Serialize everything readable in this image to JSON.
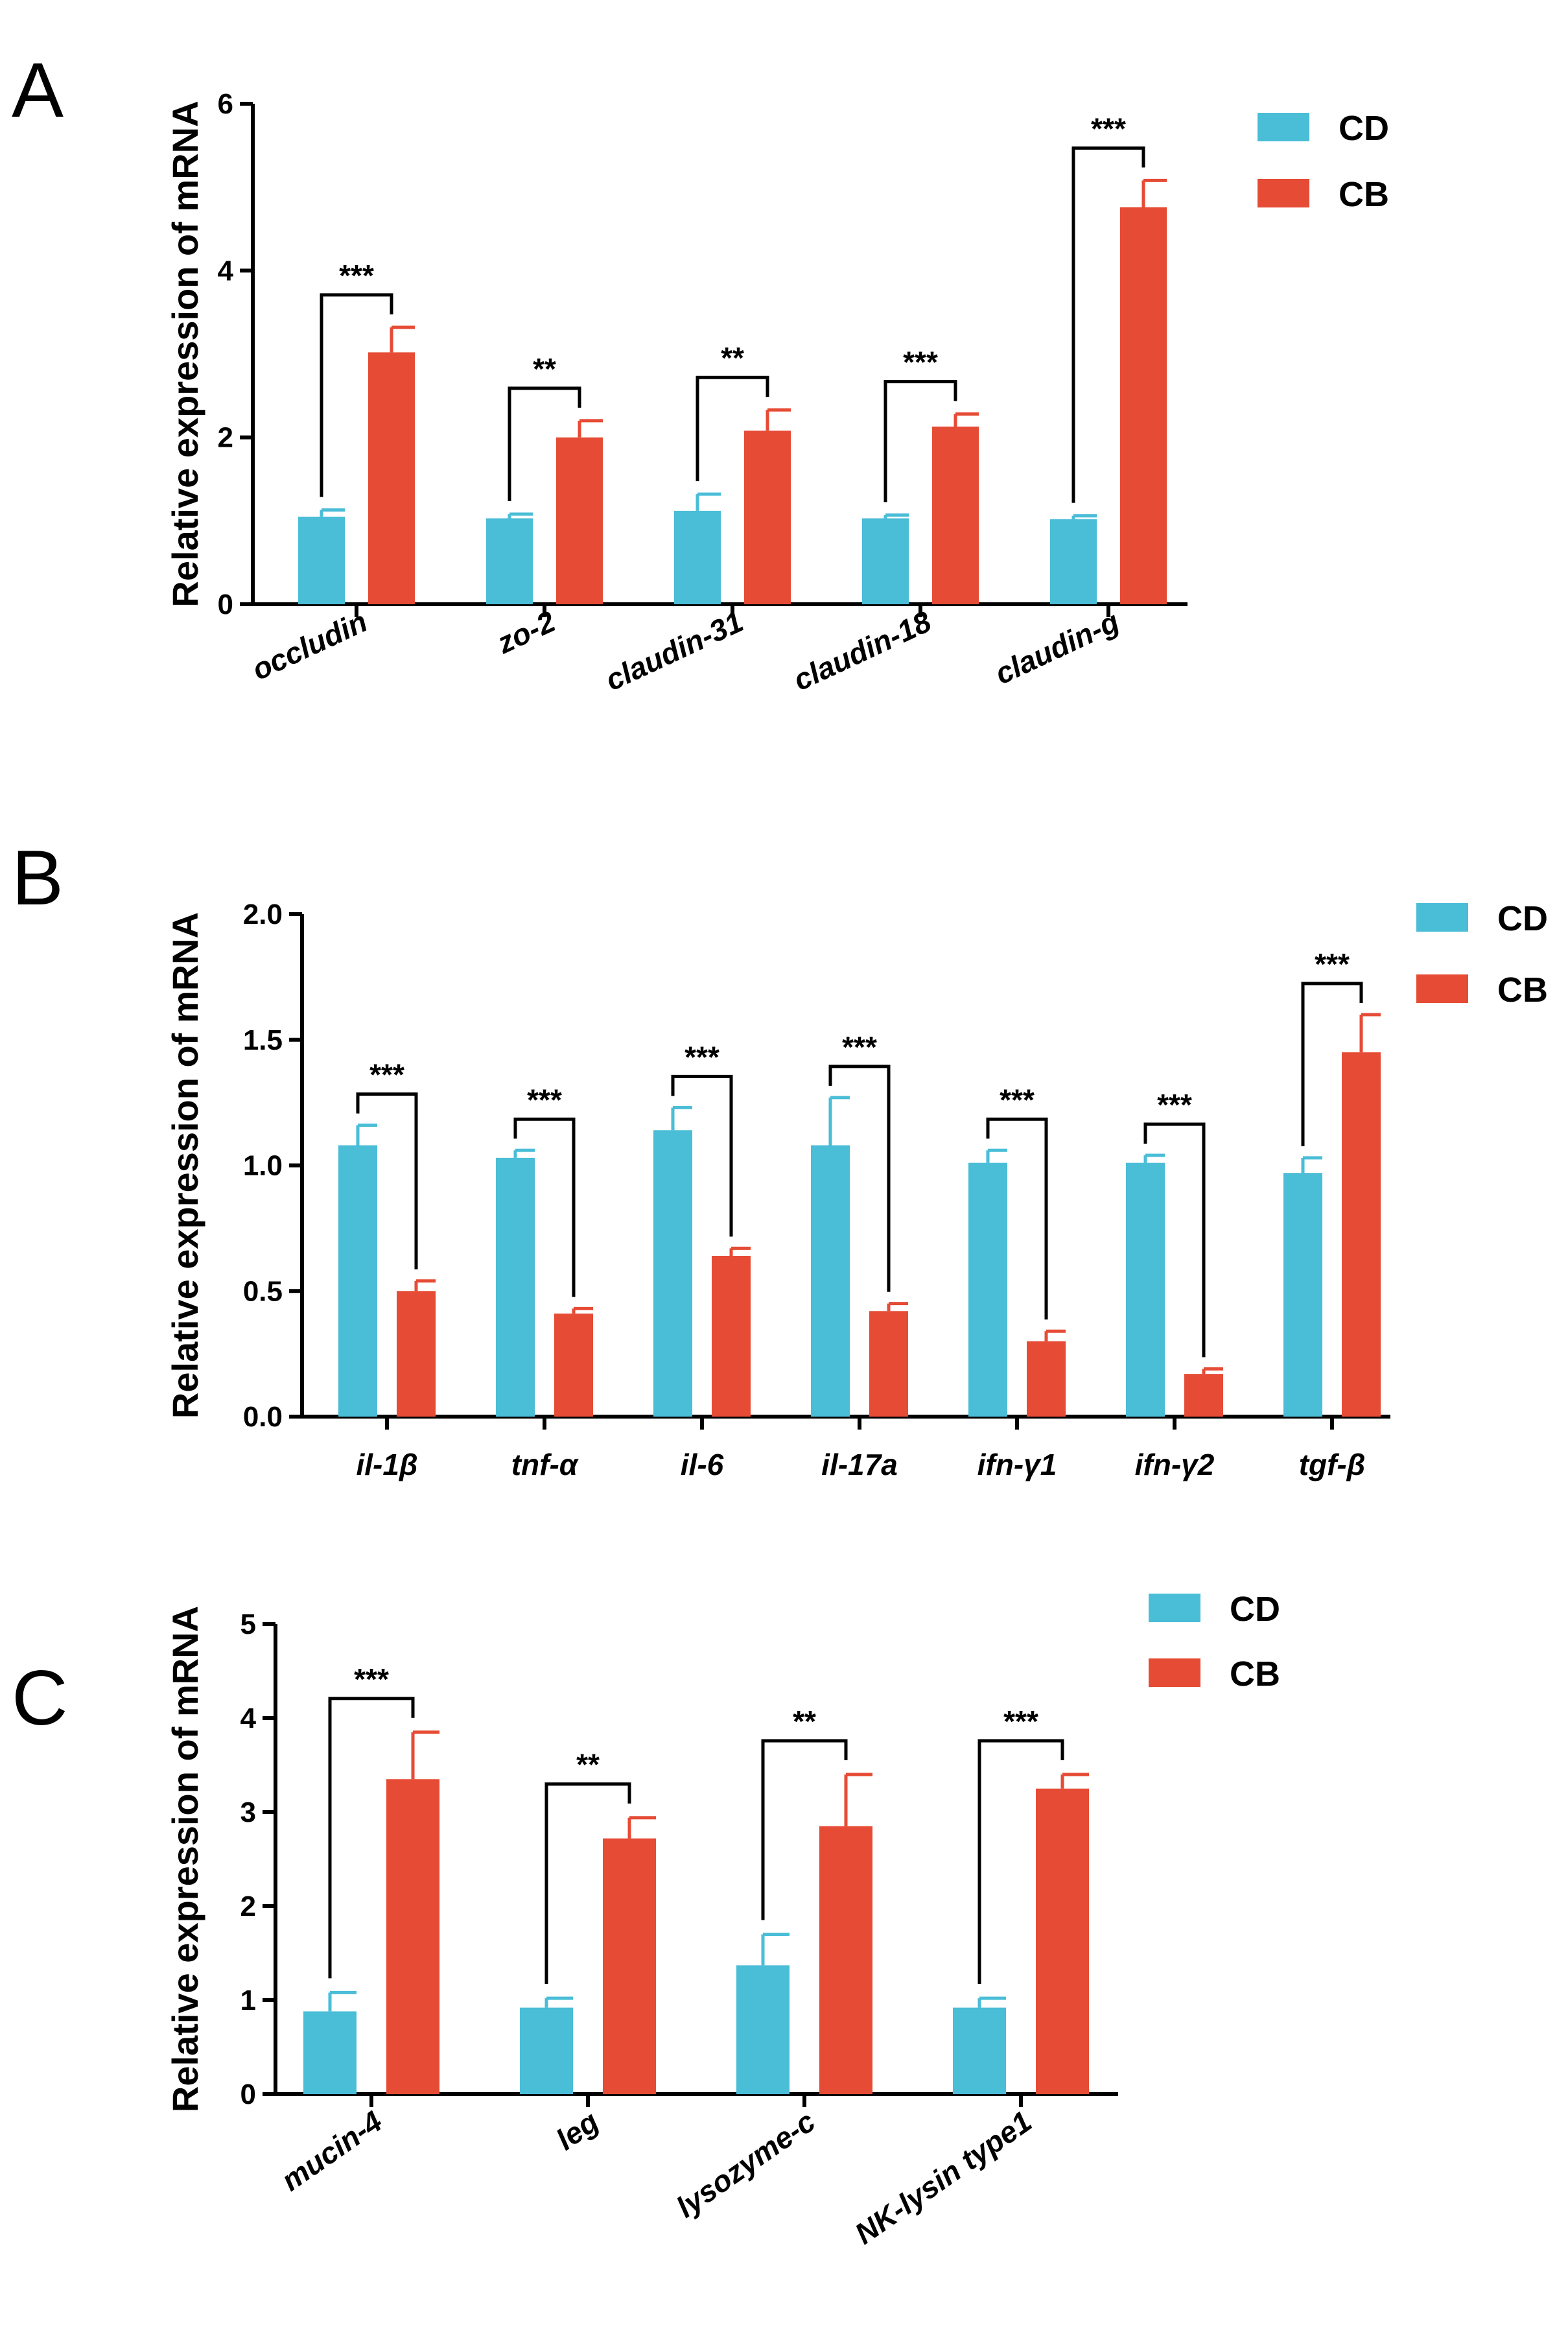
{
  "colors": {
    "CD": "#4ABDD7",
    "CB": "#E64B35"
  },
  "chart_data": [
    {
      "type": "bar",
      "panel": "A",
      "ylabel": "Relative expression of mRNA",
      "ylim": [
        0,
        6
      ],
      "yticks": [
        0,
        2,
        4,
        6
      ],
      "ytick_labels": [
        "0",
        "2",
        "4",
        "6"
      ],
      "categories": [
        "occludin",
        "zo-2",
        "claudin-31",
        "claudin-18",
        "claudin-g"
      ],
      "series": [
        {
          "name": "CD",
          "values": [
            1.05,
            1.03,
            1.12,
            1.03,
            1.02
          ],
          "errors": [
            0.08,
            0.05,
            0.2,
            0.04,
            0.04
          ]
        },
        {
          "name": "CB",
          "values": [
            3.02,
            2.0,
            2.08,
            2.13,
            4.76
          ],
          "errors": [
            0.3,
            0.2,
            0.25,
            0.15,
            0.32
          ]
        }
      ],
      "significance": [
        "***",
        "**",
        "**",
        "***",
        "***"
      ],
      "legend": [
        "CD",
        "CB"
      ]
    },
    {
      "type": "bar",
      "panel": "B",
      "ylabel": "Relative expression of mRNA",
      "ylim": [
        0,
        2.0
      ],
      "yticks": [
        0,
        0.5,
        1.0,
        1.5,
        2.0
      ],
      "ytick_labels": [
        "0.0",
        "0.5",
        "1.0",
        "1.5",
        "2.0"
      ],
      "categories": [
        "il-1β",
        "tnf-α",
        "il-6",
        "il-17a",
        "ifn-γ1",
        "ifn-γ2",
        "tgf-β"
      ],
      "series": [
        {
          "name": "CD",
          "values": [
            1.08,
            1.03,
            1.14,
            1.08,
            1.01,
            1.01,
            0.97
          ],
          "errors": [
            0.08,
            0.03,
            0.09,
            0.19,
            0.05,
            0.03,
            0.06
          ]
        },
        {
          "name": "CB",
          "values": [
            0.5,
            0.41,
            0.64,
            0.42,
            0.3,
            0.17,
            1.45
          ],
          "errors": [
            0.04,
            0.02,
            0.03,
            0.03,
            0.04,
            0.02,
            0.15
          ]
        }
      ],
      "significance": [
        "***",
        "***",
        "***",
        "***",
        "***",
        "***",
        "***"
      ],
      "legend": [
        "CD",
        "CB"
      ]
    },
    {
      "type": "bar",
      "panel": "C",
      "ylabel": "Relative expression of mRNA",
      "ylim": [
        0,
        5
      ],
      "yticks": [
        0,
        1,
        2,
        3,
        4,
        5
      ],
      "ytick_labels": [
        "0",
        "1",
        "2",
        "3",
        "4",
        "5"
      ],
      "categories": [
        "mucin-4",
        "leg",
        "lysozyme-c",
        "NK-lysin type1"
      ],
      "series": [
        {
          "name": "CD",
          "values": [
            0.88,
            0.92,
            1.37,
            0.92
          ],
          "errors": [
            0.2,
            0.1,
            0.33,
            0.1
          ]
        },
        {
          "name": "CB",
          "values": [
            3.35,
            2.72,
            2.85,
            3.25
          ],
          "errors": [
            0.5,
            0.22,
            0.55,
            0.15
          ]
        }
      ],
      "significance": [
        "***",
        "**",
        "**",
        "***"
      ],
      "legend": [
        "CD",
        "CB"
      ]
    }
  ]
}
